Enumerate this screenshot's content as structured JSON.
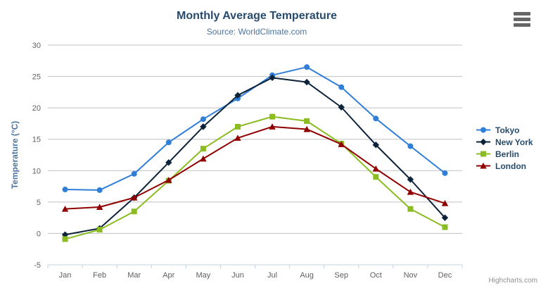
{
  "credits": "Highcharts.com",
  "icons": {
    "export_menu": "hamburger-menu-icon"
  },
  "chart_data": {
    "type": "line",
    "title": "Monthly Average Temperature",
    "subtitle": "Source: WorldClimate.com",
    "categories": [
      "Jan",
      "Feb",
      "Mar",
      "Apr",
      "May",
      "Jun",
      "Jul",
      "Aug",
      "Sep",
      "Oct",
      "Nov",
      "Dec"
    ],
    "xlabel": "",
    "ylabel": "Temperature (°C)",
    "ylim": [
      -5,
      30
    ],
    "ytick_interval": 5,
    "grid": true,
    "legend_position": "right",
    "colors": {
      "grid": "#C0C0C0",
      "axis_line": "#C0D0E0",
      "tick_label": "#606060",
      "title": "#274b6d",
      "subtitle": "#4d759e",
      "axis_title": "#4d759e"
    },
    "series": [
      {
        "name": "Tokyo",
        "color": "#2f7ed8",
        "marker": "circle",
        "values": [
          7.0,
          6.9,
          9.5,
          14.5,
          18.2,
          21.5,
          25.2,
          26.5,
          23.3,
          18.3,
          13.9,
          9.6
        ]
      },
      {
        "name": "New York",
        "color": "#0d233a",
        "marker": "diamond",
        "values": [
          -0.2,
          0.8,
          5.7,
          11.3,
          17.0,
          22.0,
          24.8,
          24.1,
          20.1,
          14.1,
          8.6,
          2.5
        ]
      },
      {
        "name": "Berlin",
        "color": "#8bbc21",
        "marker": "square",
        "values": [
          -0.9,
          0.6,
          3.5,
          8.4,
          13.5,
          17.0,
          18.6,
          17.9,
          14.3,
          9.0,
          3.9,
          1.0
        ]
      },
      {
        "name": "London",
        "color": "#910000",
        "marker": "triangle",
        "values": [
          3.9,
          4.2,
          5.7,
          8.5,
          11.9,
          15.2,
          17.0,
          16.6,
          14.2,
          10.3,
          6.6,
          4.8
        ]
      }
    ]
  }
}
